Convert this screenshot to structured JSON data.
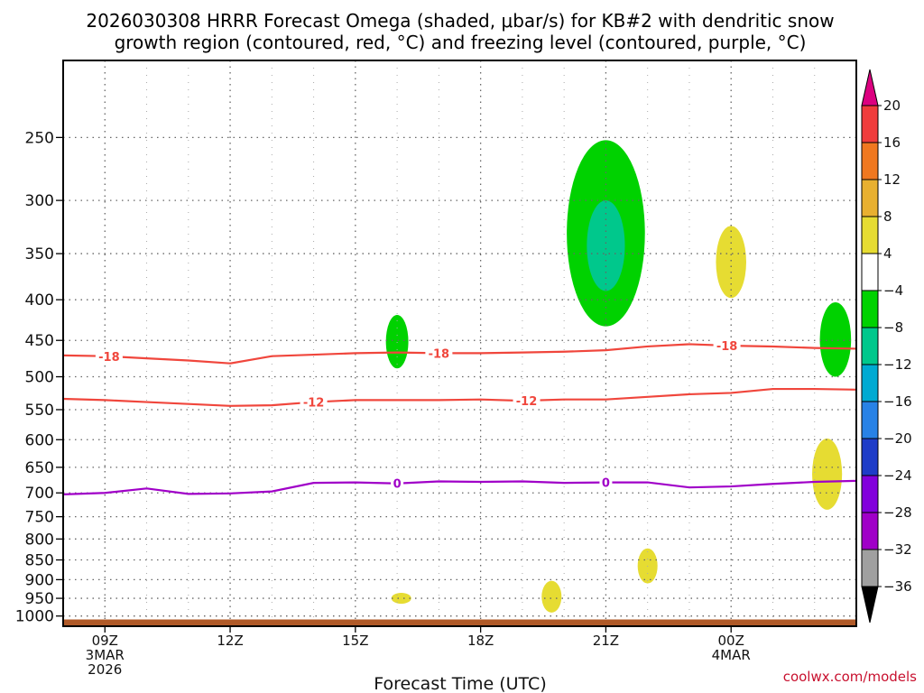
{
  "title": {
    "line1": "2026030308 HRRR Forecast Omega (shaded, μbar/s) for KB#2 with dendritic snow",
    "line2": "growth region (contoured, red, °C) and freezing level (contoured, purple, °C)"
  },
  "credit": "coolwx.com/models",
  "chart_data": {
    "type": "time-height cross section",
    "title": "2026030308 HRRR Forecast Omega (shaded, μbar/s) for KB#2 with dendritic snow growth region (contoured, red, °C) and freezing level (contoured, purple, °C)",
    "xlabel": "Forecast Time (UTC)",
    "ylabel": "",
    "xlim_hours": [
      8,
      27
    ],
    "ylim_hpa": [
      200,
      1030
    ],
    "y_scale": "log-pressure",
    "y_ticks": [
      250,
      300,
      350,
      400,
      450,
      500,
      550,
      600,
      650,
      700,
      750,
      800,
      850,
      900,
      950,
      1000
    ],
    "x_ticks": [
      {
        "hour": 9,
        "labels": [
          "09Z",
          "3MAR",
          "2026"
        ]
      },
      {
        "hour": 12,
        "labels": [
          "12Z"
        ]
      },
      {
        "hour": 15,
        "labels": [
          "15Z"
        ]
      },
      {
        "hour": 18,
        "labels": [
          "18Z"
        ]
      },
      {
        "hour": 21,
        "labels": [
          "21Z"
        ]
      },
      {
        "hour": 24,
        "labels": [
          "00Z",
          "4MAR"
        ]
      }
    ],
    "grid": true,
    "colorbar": {
      "labels": [
        "20",
        "16",
        "12",
        "8",
        "4",
        "−4",
        "−8",
        "−12",
        "−16",
        "−20",
        "−24",
        "−28",
        "−32",
        "−36"
      ],
      "colors": [
        "#dc0080",
        "#f03c3c",
        "#f07820",
        "#e8b030",
        "#e6dc32",
        "#ffffff",
        "#00d200",
        "#00c88c",
        "#00aad2",
        "#2882e6",
        "#1e3cc8",
        "#8200dc",
        "#a000c8",
        "#a0a0a0",
        "#000000"
      ]
    },
    "series": [
      {
        "name": "-18",
        "kind": "dendritic contour",
        "color": "#f0463c",
        "label": "-18",
        "points": [
          [
            8,
            470
          ],
          [
            9,
            471
          ],
          [
            10,
            474
          ],
          [
            11,
            477
          ],
          [
            12,
            481
          ],
          [
            13,
            471
          ],
          [
            14,
            469
          ],
          [
            15,
            467
          ],
          [
            16,
            466
          ],
          [
            17,
            467
          ],
          [
            18,
            467
          ],
          [
            19,
            466
          ],
          [
            20,
            465
          ],
          [
            21,
            463
          ],
          [
            22,
            458
          ],
          [
            23,
            455
          ],
          [
            24,
            457
          ],
          [
            25,
            458
          ],
          [
            26,
            460
          ],
          [
            27,
            461
          ]
        ],
        "label_hours": [
          9.1,
          17.0,
          23.9
        ]
      },
      {
        "name": "-12",
        "kind": "dendritic contour",
        "color": "#f0463c",
        "label": "-12",
        "points": [
          [
            8,
            533
          ],
          [
            9,
            535
          ],
          [
            10,
            538
          ],
          [
            11,
            541
          ],
          [
            12,
            544
          ],
          [
            13,
            543
          ],
          [
            14,
            538
          ],
          [
            15,
            535
          ],
          [
            16,
            535
          ],
          [
            17,
            535
          ],
          [
            18,
            534
          ],
          [
            19,
            536
          ],
          [
            20,
            534
          ],
          [
            21,
            534
          ],
          [
            22,
            530
          ],
          [
            23,
            526
          ],
          [
            24,
            524
          ],
          [
            25,
            518
          ],
          [
            26,
            518
          ],
          [
            27,
            519
          ]
        ],
        "label_hours": [
          14.0,
          19.1
        ]
      },
      {
        "name": "0",
        "kind": "freezing level",
        "color": "#a000c8",
        "label": "0",
        "points": [
          [
            8,
            703
          ],
          [
            9,
            700
          ],
          [
            10,
            691
          ],
          [
            11,
            702
          ],
          [
            12,
            701
          ],
          [
            13,
            697
          ],
          [
            14,
            680
          ],
          [
            15,
            679
          ],
          [
            16,
            681
          ],
          [
            17,
            677
          ],
          [
            18,
            678
          ],
          [
            19,
            677
          ],
          [
            20,
            680
          ],
          [
            21,
            679
          ],
          [
            22,
            679
          ],
          [
            23,
            689
          ],
          [
            24,
            687
          ],
          [
            25,
            682
          ],
          [
            26,
            678
          ],
          [
            27,
            676
          ]
        ],
        "label_hours": [
          16.0,
          21.0
        ]
      }
    ],
    "omega_regions": [
      {
        "range": "-4 to -8",
        "color": "#00d200",
        "center_hour": 21.0,
        "top_hpa": 252,
        "bottom_hpa": 432
      },
      {
        "range": "-8 to -12",
        "color": "#00c88c",
        "center_hour": 21.0,
        "top_hpa": 300,
        "bottom_hpa": 390
      },
      {
        "range": "-4 to -8",
        "color": "#00d200",
        "center_hour": 16.0,
        "top_hpa": 418,
        "bottom_hpa": 488
      },
      {
        "range": "-4 to -8",
        "color": "#00d200",
        "center_hour": 26.5,
        "top_hpa": 403,
        "bottom_hpa": 500
      },
      {
        "range": "4 to 8",
        "color": "#e6dc32",
        "center_hour": 24.0,
        "top_hpa": 323,
        "bottom_hpa": 398
      },
      {
        "range": "4 to 8",
        "color": "#e6dc32",
        "center_hour": 26.3,
        "top_hpa": 598,
        "bottom_hpa": 735
      },
      {
        "range": "4 to 8",
        "color": "#e6dc32",
        "center_hour": 22.0,
        "top_hpa": 822,
        "bottom_hpa": 910
      },
      {
        "range": "4 to 8",
        "color": "#e6dc32",
        "center_hour": 19.7,
        "top_hpa": 903,
        "bottom_hpa": 990
      },
      {
        "range": "4 to 8",
        "color": "#e6dc32",
        "center_hour": 16.1,
        "top_hpa": 935,
        "bottom_hpa": 965
      }
    ],
    "terrain": {
      "color": "#b05a28",
      "top_hpa": 1010
    }
  }
}
